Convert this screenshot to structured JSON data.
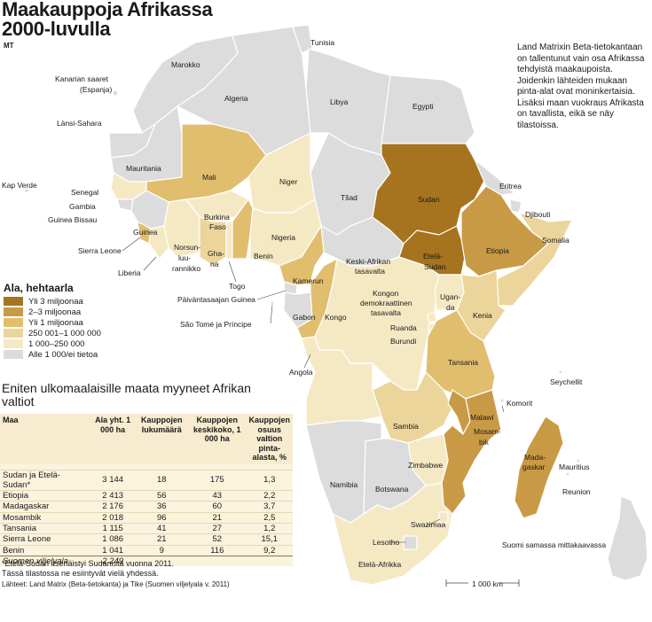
{
  "title_line1": "Maakauppoja Afrikassa",
  "title_line2": "2000-luvulla",
  "byline": "MT",
  "note": "Land Matrixin Beta-tietokantaan on tallentunut vain osa Afrikassa tehdyistä maakaupoista. Joidenkin lähteiden mukaan pinta-alat ovat moninkertaisia. Lisäksi maan vuokraus Afrikasta on tavallista, eikä se näy tilastoissa.",
  "colors": {
    "c1": "#a6731f",
    "c2": "#c99a46",
    "c3": "#e1be6e",
    "c4": "#ecd59b",
    "c5": "#f5e9c4",
    "c6": "#dcdcdc",
    "sea": "#ffffff"
  },
  "legend": {
    "title": "Ala, hehtaarla",
    "items": [
      {
        "label": "Yli 3 miljoonaa",
        "color": "#a6731f"
      },
      {
        "label": "2–3 miljoonaa",
        "color": "#c99a46"
      },
      {
        "label": "Yli 1 miljoonaa",
        "color": "#e1be6e"
      },
      {
        "label": "250 001–1 000 000",
        "color": "#ecd59b"
      },
      {
        "label": "1 000–250 000",
        "color": "#f5e9c4"
      },
      {
        "label": "Alle 1 000/ei tietoa",
        "color": "#dcdcdc"
      }
    ]
  },
  "labels": {
    "tunisia": "Tunisia",
    "marokko": "Marokko",
    "kanarian1": "Kanarian saaret",
    "kanarian2": "(Espanja)",
    "algeria": "Algeria",
    "libya": "Libya",
    "egypti": "Egypti",
    "lansisahara": "Länsi-Sahara",
    "mauritania": "Mauritania",
    "mali": "Mali",
    "niger": "Niger",
    "tsad": "Tšad",
    "sudan": "Sudan",
    "eritrea": "Eritrea",
    "kapverde": "Kap Verde",
    "senegal": "Senegal",
    "gambia": "Gambia",
    "guineabissau": "Guinea Bissau",
    "guinea": "Guinea",
    "sierraleone": "Sierra Leone",
    "liberia": "Liberia",
    "burkina1": "Burkina",
    "burkina2": "Faso",
    "nors1": "Norsun-",
    "nors2": "luu-",
    "nors3": "rannikko",
    "ghana1": "Gha-",
    "ghana2": "na",
    "togo": "Togo",
    "benin": "Benin",
    "nigeria": "Nigeria",
    "kamerun": "Kamerun",
    "keskiafrikka1": "Keski-Afrikan",
    "keskiafrikka2": "tasavalta",
    "etelasudan1": "Etelä-",
    "etelasudan2": "Sudan",
    "etiopia": "Etiopia",
    "djibouti": "Djibouti",
    "somalia": "Somalia",
    "paivantasaaja": "Päiväntasaajan Guinea",
    "saotome": "São Tomé ja Príncipe",
    "gabon": "Gabon",
    "kongo": "Kongo",
    "kdt1": "Kongon",
    "kdt2": "demokraattinen",
    "kdt3": "tasavalta",
    "uganda1": "Ugan-",
    "uganda2": "da",
    "kenia": "Kenia",
    "ruanda": "Ruanda",
    "burundi": "Burundi",
    "tansania": "Tansania",
    "angola": "Angola",
    "seychellit": "Seychellit",
    "komorit": "Komorit",
    "malawi": "Malawi",
    "mosambik1": "Mosam-",
    "mosambik2": "bik",
    "sambia": "Sambia",
    "madagaskar1": "Mada-",
    "madagaskar2": "gaskar",
    "mauritius": "Mauritius",
    "reunion": "Reunion",
    "zimbabwe": "Zimbabwe",
    "namibia": "Namibia",
    "botswana": "Botswana",
    "swazimaa": "Swazimaa",
    "lesotho": "Lesotho",
    "etelaafrikka": "Etelä-Afrikka",
    "suomi": "Suomi samassa mittakaavassa",
    "scale": "1 000 km"
  },
  "table": {
    "title": "Eniten ulkomaalaisille maata myyneet Afrikan valtiot",
    "headers": [
      "Maa",
      "Ala yht. 1 000 ha",
      "Kauppojen lukumäärä",
      "Kauppojen keskikoko, 1 000 ha",
      "Kauppojen osuus valtion pinta-alasta, %"
    ],
    "rows": [
      [
        "Sudan ja Etelä-Sudan*",
        "3 144",
        "18",
        "175",
        "1,3"
      ],
      [
        "Etiopia",
        "2 413",
        "56",
        "43",
        "2,2"
      ],
      [
        "Madagaskar",
        "2 176",
        "36",
        "60",
        "3,7"
      ],
      [
        "Mosambik",
        "2 018",
        "96",
        "21",
        "2,5"
      ],
      [
        "Tansania",
        "1 115",
        "41",
        "27",
        "1,2"
      ],
      [
        "Sierra Leone",
        "1 086",
        "21",
        "52",
        "15,1"
      ],
      [
        "Benin",
        "1 041",
        "9",
        "116",
        "9,2"
      ]
    ],
    "footer": [
      "Suomen viljelyala",
      "2 249",
      "",
      "",
      ""
    ]
  },
  "footnote1": "*Etelä-Sudan itsenäistyi Sudanista vuonna 2011.",
  "footnote2": "Tässä tilastossa ne esiintyvät vielä yhdessä.",
  "sources": "Lähteet: Land Matrix (Beta-tietokanta) ja Tike (Suomen viljelyala v. 2011)"
}
